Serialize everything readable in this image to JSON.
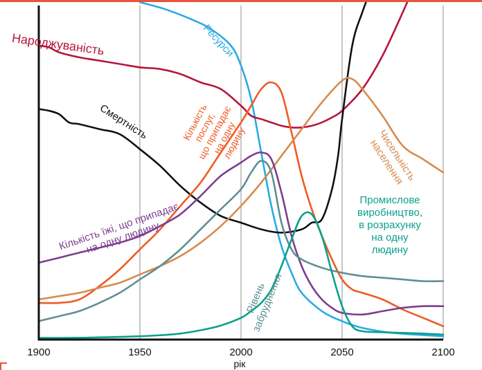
{
  "colors": {
    "frame": "#e8553a",
    "axis": "#111111",
    "grid": "#8c8c8c"
  },
  "chart_data": {
    "type": "line",
    "xlabel": "рік",
    "ylabel": "",
    "xlim": [
      1900,
      2100
    ],
    "ylim": [
      0,
      100
    ],
    "x_ticks": [
      1900,
      1950,
      2000,
      2050,
      2100
    ],
    "grid": "vertical",
    "series": [
      {
        "key": "resources",
        "name": "Ресурси",
        "color": "#29abe2",
        "x": [
          1950,
          1962,
          1975,
          1985,
          1995,
          2000,
          2005,
          2010,
          2015,
          2020,
          2025,
          2030,
          2040,
          2050,
          2060,
          2075,
          2100
        ],
        "y": [
          101,
          99,
          96,
          93,
          88,
          82,
          72,
          56,
          40,
          28,
          20,
          14,
          8.5,
          5.5,
          3.5,
          2,
          1
        ]
      },
      {
        "key": "birth",
        "name": "Народжуваність",
        "color": "#b5163d",
        "x": [
          1900,
          1905,
          1910,
          1920,
          1930,
          1940,
          1950,
          1960,
          1970,
          1980,
          1990,
          2000,
          2005,
          2010,
          2015,
          2020,
          2025,
          2030,
          2035,
          2040,
          2045,
          2050,
          2060,
          2070,
          2080,
          2085
        ],
        "y": [
          88,
          87.5,
          86,
          84.5,
          83.5,
          82.5,
          81.5,
          81,
          79.5,
          77,
          75,
          70,
          67,
          66,
          65,
          64,
          63.5,
          63.5,
          64,
          65,
          66.5,
          68.5,
          75,
          85,
          98,
          105
        ]
      },
      {
        "key": "death",
        "name": "Смертність",
        "color": "#111111",
        "x": [
          1900,
          1905,
          1910,
          1915,
          1920,
          1930,
          1940,
          1950,
          1960,
          1970,
          1980,
          1990,
          2000,
          2010,
          2020,
          2030,
          2035,
          2040,
          2045,
          2048,
          2050,
          2055,
          2060,
          2065
        ],
        "y": [
          69,
          68.5,
          67.5,
          65,
          64.5,
          63,
          61.5,
          57,
          52,
          46,
          41,
          37,
          35,
          33,
          32,
          33,
          35,
          36,
          45,
          55,
          66,
          88,
          98,
          106
        ]
      },
      {
        "key": "services",
        "name": "Кількість послуг, що припадає на одну людину",
        "color": "#ef5a24",
        "x": [
          1900,
          1910,
          1920,
          1930,
          1940,
          1950,
          1960,
          1970,
          1980,
          1990,
          2000,
          2005,
          2010,
          2015,
          2020,
          2025,
          2030,
          2035,
          2040,
          2045,
          2050,
          2055,
          2060,
          2070,
          2080,
          2090,
          2100
        ],
        "y": [
          11,
          11,
          12,
          16,
          21,
          27,
          33,
          40,
          47,
          56,
          65,
          70,
          75,
          77,
          74,
          62,
          49,
          39,
          31,
          24,
          18,
          15,
          14,
          12,
          9,
          6.5,
          4
        ]
      },
      {
        "key": "population",
        "name": "Чисельність населення",
        "color": "#d68b4e",
        "x": [
          1900,
          1910,
          1920,
          1930,
          1940,
          1950,
          1960,
          1970,
          1980,
          1990,
          2000,
          2010,
          2020,
          2030,
          2040,
          2050,
          2055,
          2060,
          2070,
          2080,
          2090,
          2100
        ],
        "y": [
          12,
          13,
          14,
          15.5,
          17,
          19.5,
          22,
          25,
          29,
          34,
          40,
          47,
          55,
          63,
          71,
          77.5,
          78,
          75,
          67,
          58,
          54,
          50
        ]
      },
      {
        "key": "food",
        "name": "Кількість їжі, що припадає на одну людину",
        "color": "#7e3d8e",
        "x": [
          1900,
          1910,
          1920,
          1930,
          1940,
          1950,
          1960,
          1970,
          1980,
          1990,
          2000,
          2005,
          2010,
          2015,
          2020,
          2025,
          2030,
          2035,
          2040,
          2045,
          2050,
          2060,
          2070,
          2080,
          2090,
          2100
        ],
        "y": [
          23,
          24.5,
          26,
          27.5,
          29,
          31,
          34,
          37.5,
          43,
          49,
          53,
          55,
          56,
          54,
          44,
          31,
          22,
          16,
          12,
          9.5,
          8,
          7.5,
          8.5,
          9.5,
          10,
          10
        ]
      },
      {
        "key": "pollution",
        "name": "Рівень забруднення",
        "color": "#5f8f93",
        "x": [
          1900,
          1910,
          1920,
          1930,
          1940,
          1950,
          1960,
          1970,
          1980,
          1990,
          2000,
          2005,
          2010,
          2015,
          2020,
          2025,
          2030,
          2040,
          2050,
          2060,
          2070,
          2080,
          2090,
          2100
        ],
        "y": [
          5.5,
          7,
          8.5,
          11,
          14,
          18,
          22,
          27,
          33,
          39,
          45,
          50,
          53.5,
          50,
          35,
          27,
          24,
          21.5,
          20,
          19,
          18.5,
          18,
          17.5,
          17.5
        ]
      },
      {
        "key": "industry",
        "name": "Промислове виробництво, в розрахунку на одну людину",
        "color": "#0ba08c",
        "x": [
          1900,
          1925,
          1950,
          1960,
          1970,
          1980,
          1990,
          2000,
          2005,
          2010,
          2015,
          2020,
          2025,
          2030,
          2035,
          2040,
          2045,
          2050,
          2055,
          2060,
          2070,
          2080,
          2090,
          2100
        ],
        "y": [
          0.5,
          0.6,
          1,
          1.3,
          1.8,
          2.8,
          4.2,
          6.5,
          8.5,
          11,
          15,
          22,
          30,
          37,
          37.5,
          31,
          20,
          10,
          4,
          2.5,
          2.2,
          2,
          1.8,
          1.5
        ]
      }
    ],
    "labels": [
      {
        "key": "resources",
        "lines": [
          "Ресурси"
        ]
      },
      {
        "key": "birth",
        "lines": [
          "Народжуваність"
        ]
      },
      {
        "key": "death",
        "lines": [
          "Смертність"
        ]
      },
      {
        "key": "services",
        "lines": [
          "Кількість",
          "послуг,",
          "що припадає",
          "на одну",
          "людину"
        ]
      },
      {
        "key": "population",
        "lines": [
          "Чисельність",
          "населення"
        ]
      },
      {
        "key": "food",
        "lines": [
          "Кількість їжі, що припадає",
          "на одну людину"
        ]
      },
      {
        "key": "pollution",
        "lines": [
          "Рівень",
          "забруднення"
        ]
      },
      {
        "key": "industry",
        "lines": [
          "Промислове",
          "виробництво,",
          "в розрахунку",
          "на одну",
          "людину"
        ]
      }
    ]
  }
}
